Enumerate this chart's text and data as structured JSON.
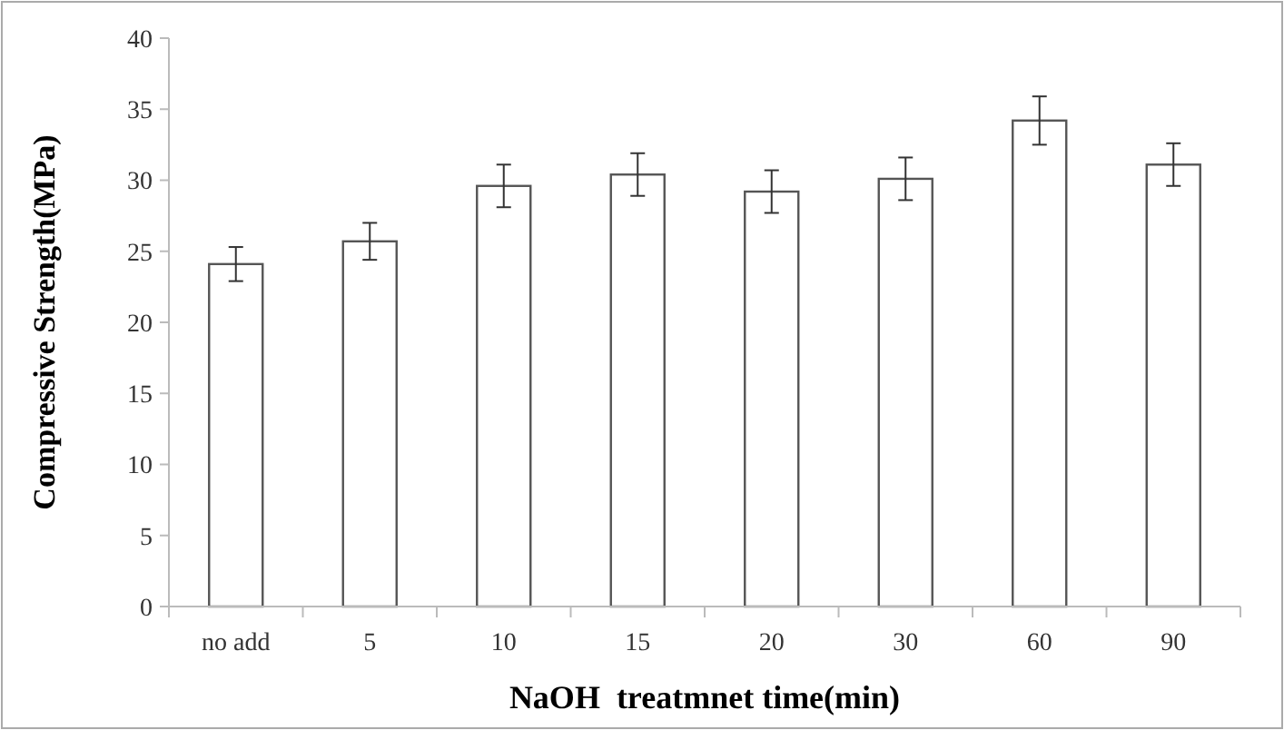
{
  "chart_data": {
    "type": "bar",
    "xlabel": "NaOH  treatmnet time(min)",
    "ylabel": "Compressive Strength(MPa)",
    "categories": [
      "no add",
      "5",
      "10",
      "15",
      "20",
      "30",
      "60",
      "90"
    ],
    "values": [
      24.1,
      25.7,
      29.6,
      30.4,
      29.2,
      30.1,
      34.2,
      31.1
    ],
    "errors": [
      1.2,
      1.3,
      1.5,
      1.5,
      1.5,
      1.5,
      1.7,
      1.5
    ],
    "color": "#ffffff",
    "ylim": [
      0,
      40
    ],
    "yticks": [
      0,
      5,
      10,
      15,
      20,
      25,
      30,
      35,
      40
    ],
    "grid": false
  }
}
